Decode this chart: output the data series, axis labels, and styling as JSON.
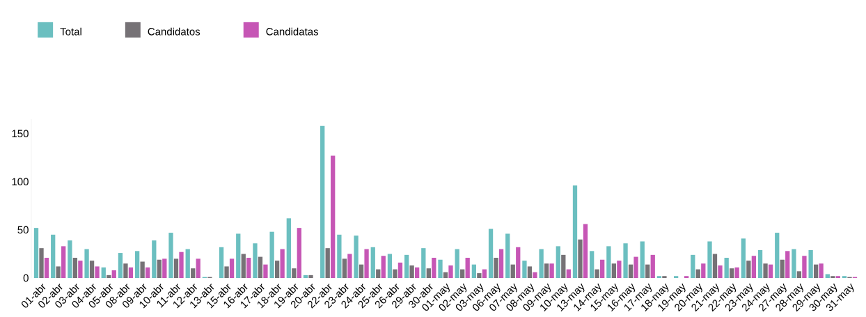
{
  "chart_data": {
    "type": "bar",
    "categories": [
      "01-abr",
      "02-abr",
      "03-abr",
      "04-abr",
      "05-abr",
      "08-abr",
      "09-abr",
      "10-abr",
      "11-abr",
      "12-abr",
      "13-abr",
      "15-abr",
      "16-abr",
      "17-abr",
      "18-abr",
      "19-abr",
      "20-abr",
      "22-abr",
      "23-abr",
      "24-abr",
      "25-abr",
      "26-abr",
      "29-abr",
      "30-abr",
      "01-may",
      "02-may",
      "03-may",
      "06-may",
      "07-may",
      "08-may",
      "09-may",
      "10-may",
      "13-may",
      "14-may",
      "15-may",
      "16-may",
      "17-may",
      "18-may",
      "19-may",
      "20-may",
      "21-may",
      "22-may",
      "23-may",
      "24-may",
      "27-may",
      "28-may",
      "29-may",
      "30-may",
      "31-may"
    ],
    "series": [
      {
        "name": "Total",
        "color": "#6bbfc0",
        "values": [
          52,
          45,
          39,
          30,
          11,
          26,
          28,
          39,
          47,
          30,
          1,
          32,
          46,
          36,
          48,
          62,
          3,
          158,
          45,
          44,
          32,
          25,
          24,
          31,
          19,
          30,
          14,
          51,
          46,
          18,
          30,
          33,
          96,
          28,
          33,
          36,
          38,
          2,
          2,
          24,
          38,
          21,
          41,
          29,
          47,
          30,
          29,
          4,
          2
        ]
      },
      {
        "name": "Candidatos",
        "color": "#767276",
        "values": [
          31,
          12,
          21,
          18,
          3,
          15,
          17,
          19,
          20,
          10,
          1,
          12,
          25,
          22,
          18,
          10,
          3,
          31,
          20,
          14,
          9,
          9,
          13,
          10,
          6,
          9,
          5,
          21,
          14,
          12,
          15,
          24,
          40,
          9,
          15,
          14,
          14,
          2,
          null,
          9,
          25,
          10,
          18,
          15,
          19,
          7,
          14,
          2,
          1
        ]
      },
      {
        "name": "Candidatas",
        "color": "#c656b5",
        "values": [
          21,
          33,
          18,
          12,
          8,
          11,
          11,
          20,
          27,
          20,
          null,
          20,
          21,
          14,
          30,
          52,
          null,
          127,
          25,
          30,
          23,
          16,
          11,
          21,
          13,
          21,
          9,
          30,
          32,
          6,
          15,
          9,
          56,
          19,
          18,
          22,
          24,
          null,
          2,
          15,
          13,
          11,
          23,
          14,
          28,
          23,
          15,
          2,
          1
        ]
      }
    ],
    "ylim": [
      0,
      165
    ],
    "yticks": [
      0,
      50,
      100,
      150
    ],
    "grid": false,
    "legend": "top left"
  }
}
